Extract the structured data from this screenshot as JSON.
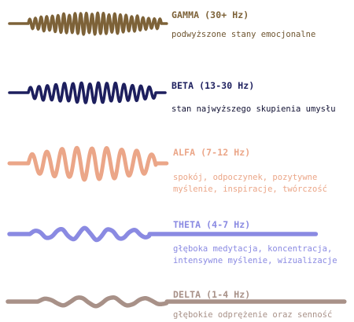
{
  "waves": [
    {
      "id": "gamma",
      "title": "GAMMA (30+ Hz)",
      "description": [
        "podwyższone stany emocjonalne"
      ],
      "color": "#7d6238"
    },
    {
      "id": "beta",
      "title": "BETA (13-30 Hz)",
      "description": [
        "stan najwyższego skupienia umysłu"
      ],
      "color": "#1d1f5e"
    },
    {
      "id": "alfa",
      "title": "ALFA (7-12 Hz)",
      "description": [
        "spokój, odpoczynek, pozytywne",
        "myślenie, inspiracje, twórczość"
      ],
      "color": "#eba688"
    },
    {
      "id": "theta",
      "title": "THETA (4-7 Hz)",
      "description": [
        "głęboka medytacja, koncentracja,",
        "intensywne myślenie, wizualizacje"
      ],
      "color": "#8a8ae2"
    },
    {
      "id": "delta",
      "title": "DELTA (1-4 Hz)",
      "description": [
        "głębokie odprężenie oraz senność"
      ],
      "color": "#a89188"
    }
  ]
}
